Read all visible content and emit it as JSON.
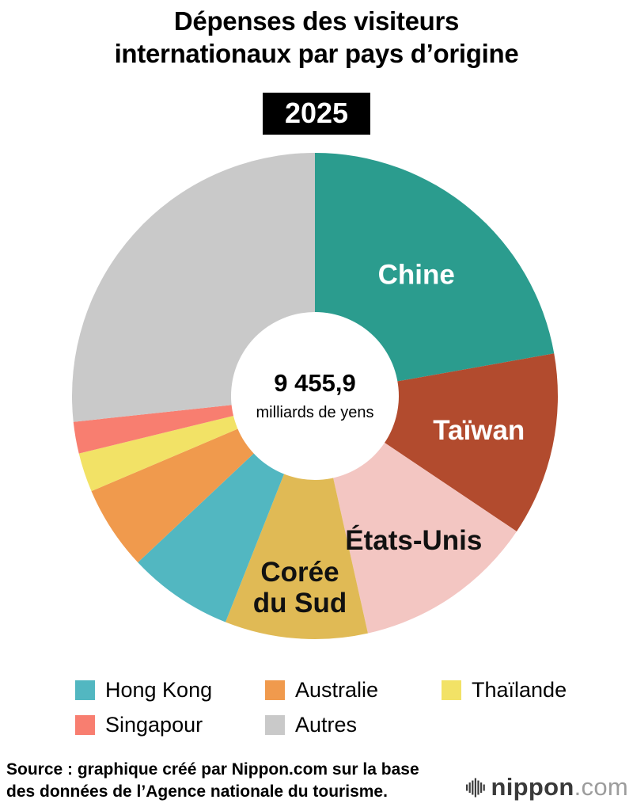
{
  "title": {
    "line1": "Dépenses des visiteurs",
    "line2": "internationaux par pays d’origine"
  },
  "year_badge": "2025",
  "chart_data": {
    "type": "pie",
    "donut": true,
    "start_angle_deg": 0,
    "direction": "clockwise",
    "title": "Dépenses des visiteurs internationaux par pays d’origine",
    "year": "2025",
    "total_value": "9 455,9",
    "unit": "milliards de yens",
    "center_label": {
      "value": "9 455,9",
      "unit": "milliards de yens"
    },
    "slices": [
      {
        "name": "Chine",
        "percent": 22.2,
        "color": "#2b9c8e",
        "label": {
          "lines": [
            "Chine"
          ],
          "color": "#ffffff",
          "radius": 0.65
        }
      },
      {
        "name": "Taïwan",
        "percent": 12.2,
        "color": "#b24b2e",
        "label": {
          "lines": [
            "Taïwan"
          ],
          "color": "#ffffff",
          "radius": 0.69
        }
      },
      {
        "name": "États-Unis",
        "percent": 12.1,
        "color": "#f3c6c2",
        "label": {
          "lines": [
            "États-Unis"
          ],
          "color": "#111111",
          "radius": 0.72
        }
      },
      {
        "name": "Corée du Sud",
        "percent": 9.5,
        "color": "#e0ba55",
        "label": {
          "lines": [
            "Corée",
            "du Sud"
          ],
          "color": "#111111",
          "radius": 0.79
        }
      },
      {
        "name": "Hong Kong",
        "percent": 7.0,
        "color": "#52b7c1",
        "label": null
      },
      {
        "name": "Australie",
        "percent": 5.6,
        "color": "#f09a4d",
        "label": null
      },
      {
        "name": "Thaïlande",
        "percent": 2.6,
        "color": "#f2e266",
        "label": null
      },
      {
        "name": "Singapour",
        "percent": 2.1,
        "color": "#f87e70",
        "label": null
      },
      {
        "name": "Autres",
        "percent": 26.7,
        "color": "#c9c9c9",
        "label": null
      }
    ],
    "legend_position": "bottom"
  },
  "legend": {
    "items": [
      "Hong Kong",
      "Australie",
      "Thaïlande",
      "Singapour",
      "Autres"
    ]
  },
  "footer": {
    "source_line1": "Source : graphique créé par Nippon.com sur la base",
    "source_line2": "des données de l’Agence nationale du tourisme.",
    "logo": {
      "name": "nippon",
      "tld": ".com"
    }
  }
}
